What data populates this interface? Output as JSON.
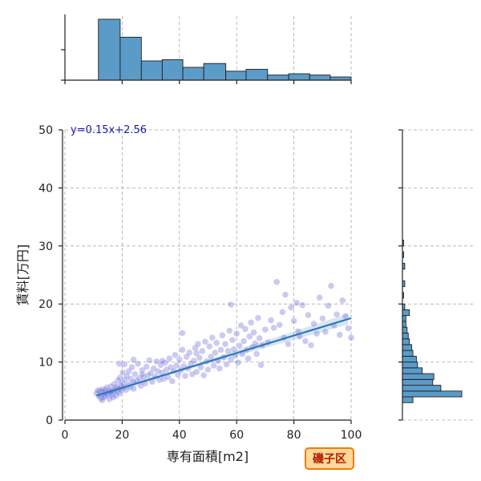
{
  "badge": "磯子区",
  "chart_data": {
    "type": "scatter",
    "xlabel": "専有面積[m2]",
    "ylabel": "賃料[万円]",
    "xlim": [
      0,
      100
    ],
    "ylim": [
      0,
      50
    ],
    "xticks": [
      0,
      20,
      40,
      60,
      80,
      100
    ],
    "yticks": [
      0,
      10,
      20,
      30,
      40,
      50
    ],
    "grid": true,
    "regression": {
      "label": "y=0.15x+2.56",
      "slope": 0.15,
      "intercept": 2.56,
      "x_range": [
        11,
        100
      ]
    },
    "colors": {
      "points": "#5a5ad6",
      "line": "#2a78b8",
      "hist": "#5b9bc8",
      "badge_border": "#f07a10",
      "badge_bg": "#ffd89a",
      "badge_text": "#b21a00",
      "equation": "#1a1aa6"
    },
    "points": [
      [
        11,
        4.6
      ],
      [
        11.5,
        5.1
      ],
      [
        12,
        4.2
      ],
      [
        12,
        5.0
      ],
      [
        12.5,
        3.8
      ],
      [
        12.8,
        4.9
      ],
      [
        13,
        5.3
      ],
      [
        13.2,
        4.4
      ],
      [
        13.5,
        3.9
      ],
      [
        13.7,
        4.8
      ],
      [
        14,
        5.2
      ],
      [
        14,
        4.1
      ],
      [
        14.3,
        4.6
      ],
      [
        14.6,
        5.6
      ],
      [
        15,
        4.3
      ],
      [
        15.2,
        5.0
      ],
      [
        15.5,
        3.6
      ],
      [
        15.8,
        4.7
      ],
      [
        16,
        5.8
      ],
      [
        16.2,
        4.4
      ],
      [
        16.5,
        5.1
      ],
      [
        16.8,
        3.9
      ],
      [
        17,
        4.8
      ],
      [
        17.2,
        6.2
      ],
      [
        17.5,
        5.3
      ],
      [
        17.8,
        4.2
      ],
      [
        18,
        5.7
      ],
      [
        18.2,
        4.9
      ],
      [
        18.5,
        6.8
      ],
      [
        18.8,
        5.4
      ],
      [
        19,
        4.6
      ],
      [
        19.2,
        7.3
      ],
      [
        19.5,
        5.9
      ],
      [
        19.8,
        5.1
      ],
      [
        20,
        6.4
      ],
      [
        20.2,
        8.2
      ],
      [
        20.5,
        5.7
      ],
      [
        20.8,
        9.6
      ],
      [
        21,
        6.9
      ],
      [
        21.3,
        5.2
      ],
      [
        21.6,
        7.6
      ],
      [
        22,
        6.1
      ],
      [
        22.3,
        8.4
      ],
      [
        22.7,
        5.6
      ],
      [
        23,
        7.1
      ],
      [
        23.4,
        9.1
      ],
      [
        23.8,
        6.5
      ],
      [
        24,
        5.4
      ],
      [
        24.5,
        7.9
      ],
      [
        25,
        6.8
      ],
      [
        25.5,
        9.7
      ],
      [
        26,
        7.2
      ],
      [
        26.5,
        5.9
      ],
      [
        27,
        8.6
      ],
      [
        27.5,
        7.4
      ],
      [
        28,
        6.3
      ],
      [
        28.5,
        9.2
      ],
      [
        29,
        7.7
      ],
      [
        29.5,
        10.3
      ],
      [
        30,
        8.1
      ],
      [
        30.5,
        6.6
      ],
      [
        31,
        8.9
      ],
      [
        31.5,
        7.5
      ],
      [
        32,
        10.1
      ],
      [
        32.5,
        8.4
      ],
      [
        33,
        6.9
      ],
      [
        33.5,
        9.5
      ],
      [
        34,
        8.2
      ],
      [
        34.5,
        7.1
      ],
      [
        35,
        9.9
      ],
      [
        35.5,
        8.7
      ],
      [
        36,
        7.4
      ],
      [
        36.5,
        10.6
      ],
      [
        37,
        9.1
      ],
      [
        37.5,
        6.7
      ],
      [
        38,
        8.5
      ],
      [
        38.5,
        11.2
      ],
      [
        39,
        9.4
      ],
      [
        39.5,
        7.8
      ],
      [
        40,
        10.4
      ],
      [
        40.5,
        8.6
      ],
      [
        41,
        12.1
      ],
      [
        41,
        15.0
      ],
      [
        41.5,
        9.3
      ],
      [
        42,
        7.6
      ],
      [
        42.5,
        10.9
      ],
      [
        43,
        8.9
      ],
      [
        43.5,
        11.6
      ],
      [
        44,
        9.7
      ],
      [
        44.5,
        7.9
      ],
      [
        45,
        10.2
      ],
      [
        45.5,
        12.4
      ],
      [
        46,
        8.3
      ],
      [
        46.5,
        13.1
      ],
      [
        47,
        10.7
      ],
      [
        47.5,
        9.1
      ],
      [
        48,
        11.9
      ],
      [
        48.5,
        7.7
      ],
      [
        49,
        13.5
      ],
      [
        49.5,
        10.1
      ],
      [
        50,
        8.7
      ],
      [
        50.5,
        12.7
      ],
      [
        51,
        10.9
      ],
      [
        51.5,
        14.2
      ],
      [
        52,
        9.4
      ],
      [
        52.5,
        11.6
      ],
      [
        53,
        13.3
      ],
      [
        53.5,
        10.2
      ],
      [
        54,
        8.9
      ],
      [
        54.5,
        12.1
      ],
      [
        55,
        14.6
      ],
      [
        55.5,
        10.8
      ],
      [
        56,
        13.1
      ],
      [
        56.5,
        9.6
      ],
      [
        57,
        11.9
      ],
      [
        57.5,
        15.4
      ],
      [
        58,
        10.4
      ],
      [
        58.5,
        13.8
      ],
      [
        59,
        12.2
      ],
      [
        59.5,
        11.1
      ],
      [
        60,
        14.9
      ],
      [
        60.5,
        9.9
      ],
      [
        61,
        12.8
      ],
      [
        61.5,
        16.3
      ],
      [
        62,
        11.4
      ],
      [
        62.5,
        13.6
      ],
      [
        63,
        15.7
      ],
      [
        63.5,
        12.1
      ],
      [
        64,
        10.6
      ],
      [
        64.5,
        14.4
      ],
      [
        65,
        16.8
      ],
      [
        65.5,
        12.6
      ],
      [
        66,
        15.1
      ],
      [
        66.5,
        13.2
      ],
      [
        67,
        11.4
      ],
      [
        67.5,
        17.6
      ],
      [
        68,
        14.1
      ],
      [
        68.5,
        9.5
      ],
      [
        69,
        12.9
      ],
      [
        70,
        15.6
      ],
      [
        71,
        13.4
      ],
      [
        72,
        17.2
      ],
      [
        73,
        15.9
      ],
      [
        74,
        23.8
      ],
      [
        75,
        16.4
      ],
      [
        76,
        18.6
      ],
      [
        76.5,
        14.2
      ],
      [
        77,
        21.6
      ],
      [
        78,
        13.1
      ],
      [
        79,
        19.4
      ],
      [
        80,
        17.1
      ],
      [
        81,
        20.2
      ],
      [
        81.5,
        15.3
      ],
      [
        82,
        14.4
      ],
      [
        83,
        19.8
      ],
      [
        84,
        13.6
      ],
      [
        85,
        18.1
      ],
      [
        86,
        12.9
      ],
      [
        87,
        16.6
      ],
      [
        88,
        14.9
      ],
      [
        89,
        21.1
      ],
      [
        90,
        17.5
      ],
      [
        91,
        15.2
      ],
      [
        92,
        19.7
      ],
      [
        93,
        23.1
      ],
      [
        94,
        16.3
      ],
      [
        95,
        18.2
      ],
      [
        96,
        14.7
      ],
      [
        97,
        20.6
      ],
      [
        98,
        17.9
      ],
      [
        99,
        15.8
      ],
      [
        100,
        14.2
      ],
      [
        58,
        19.9
      ],
      [
        46,
        11.5
      ],
      [
        34,
        10.2
      ],
      [
        27,
        7.9
      ],
      [
        24,
        10.4
      ],
      [
        19,
        9.7
      ],
      [
        16,
        4.9
      ],
      [
        13,
        3.4
      ]
    ],
    "x_hist": {
      "bins": [
        [
          11.7,
          19.3,
          95
        ],
        [
          19.3,
          26.7,
          67
        ],
        [
          26.7,
          34.0,
          30
        ],
        [
          34.0,
          41.2,
          32
        ],
        [
          41.2,
          48.5,
          20
        ],
        [
          48.5,
          56.2,
          26
        ],
        [
          56.2,
          63.3,
          14
        ],
        [
          63.3,
          70.8,
          17
        ],
        [
          70.8,
          78.2,
          8
        ],
        [
          78.2,
          85.5,
          10
        ],
        [
          85.5,
          92.7,
          8
        ],
        [
          92.7,
          100.0,
          5
        ]
      ],
      "max": 95
    },
    "y_hist": {
      "bins": [
        [
          3,
          4,
          9
        ],
        [
          4,
          5,
          51
        ],
        [
          5,
          6,
          33
        ],
        [
          6,
          7,
          26
        ],
        [
          7,
          8,
          27
        ],
        [
          8,
          9,
          17
        ],
        [
          9,
          10,
          13
        ],
        [
          10,
          11,
          12
        ],
        [
          11,
          12,
          9
        ],
        [
          12,
          13,
          8
        ],
        [
          13,
          14,
          6
        ],
        [
          14,
          15,
          5
        ],
        [
          15,
          16,
          4
        ],
        [
          16,
          17,
          3
        ],
        [
          17,
          18,
          3
        ],
        [
          18,
          19,
          6
        ],
        [
          19,
          20,
          2
        ],
        [
          21,
          22,
          1
        ],
        [
          23,
          24,
          2
        ],
        [
          26,
          27,
          2
        ],
        [
          28,
          29,
          1
        ],
        [
          30,
          31,
          1
        ]
      ],
      "max": 51
    }
  }
}
